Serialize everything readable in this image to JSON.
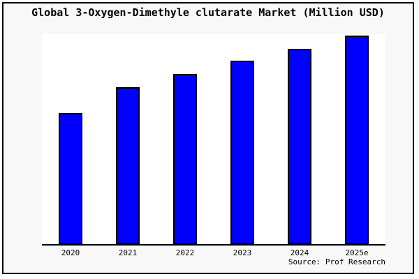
{
  "title": "Global 3-Oxygen-Dimethyle clutarate Market (Million USD)",
  "footer": {
    "source": "Source: Prof Research"
  },
  "colors": {
    "figure_background": "#f8f8f8",
    "plot_background": "#ffffff",
    "frame_border": "#000000",
    "bar_fill": "#0000ff",
    "bar_border": "#000000",
    "axis_line": "#000000",
    "text": "#000000"
  },
  "chart_data": {
    "type": "bar",
    "title": "Global 3-Oxygen-Dimethyle clutarate Market (Million USD)",
    "categories": [
      "2020",
      "2021",
      "2022",
      "2023",
      "2024",
      "2025e"
    ],
    "values": [
      62.9,
      75.3,
      81.6,
      88.0,
      93.6,
      100
    ],
    "values_note": "No y-axis tick labels are visible in the chart; values are estimated as percent of the tallest (2025e) bar.",
    "xlabel": "",
    "ylabel": "",
    "ylim": [
      0,
      100.7
    ],
    "grid": false,
    "legend": false,
    "y_axis_visible": false,
    "source": "Source: Prof Research"
  }
}
